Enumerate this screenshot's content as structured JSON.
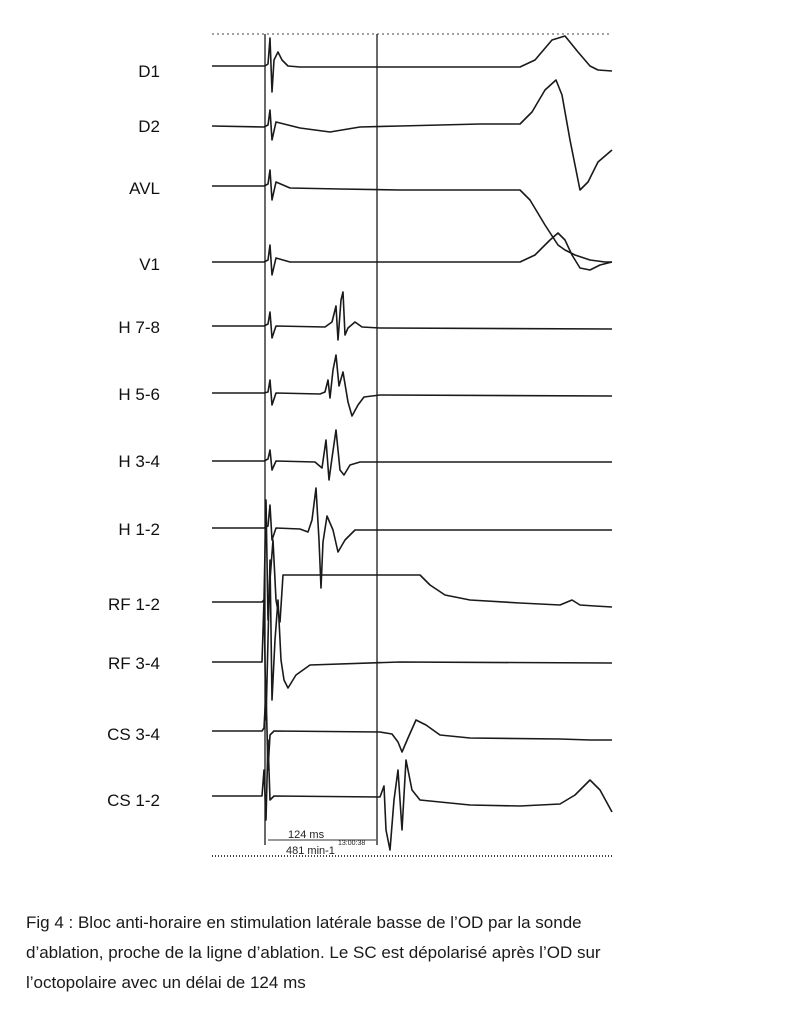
{
  "leads": [
    {
      "label": "D1"
    },
    {
      "label": "D2"
    },
    {
      "label": "AVL"
    },
    {
      "label": "V1"
    },
    {
      "label": "H  7-8"
    },
    {
      "label": "H  5-6"
    },
    {
      "label": "H  3-4"
    },
    {
      "label": "H  1-2"
    },
    {
      "label": "RF 1-2"
    },
    {
      "label": "RF 3-4"
    },
    {
      "label": "CS 3-4"
    },
    {
      "label": "CS 1-2"
    }
  ],
  "measure": {
    "interval": "124 ms",
    "time": "13:00:38",
    "rate": "481 min-1"
  },
  "caption": {
    "lines": [
      "Fig 4 : Bloc anti-horaire en stimulation latérale basse de l’OD par la sonde",
      "d’ablation, proche de la ligne d’ablation. Le SC est dépolarisé après  l’OD sur",
      "l’octopolaire avec un délai de 124 ms"
    ]
  }
}
